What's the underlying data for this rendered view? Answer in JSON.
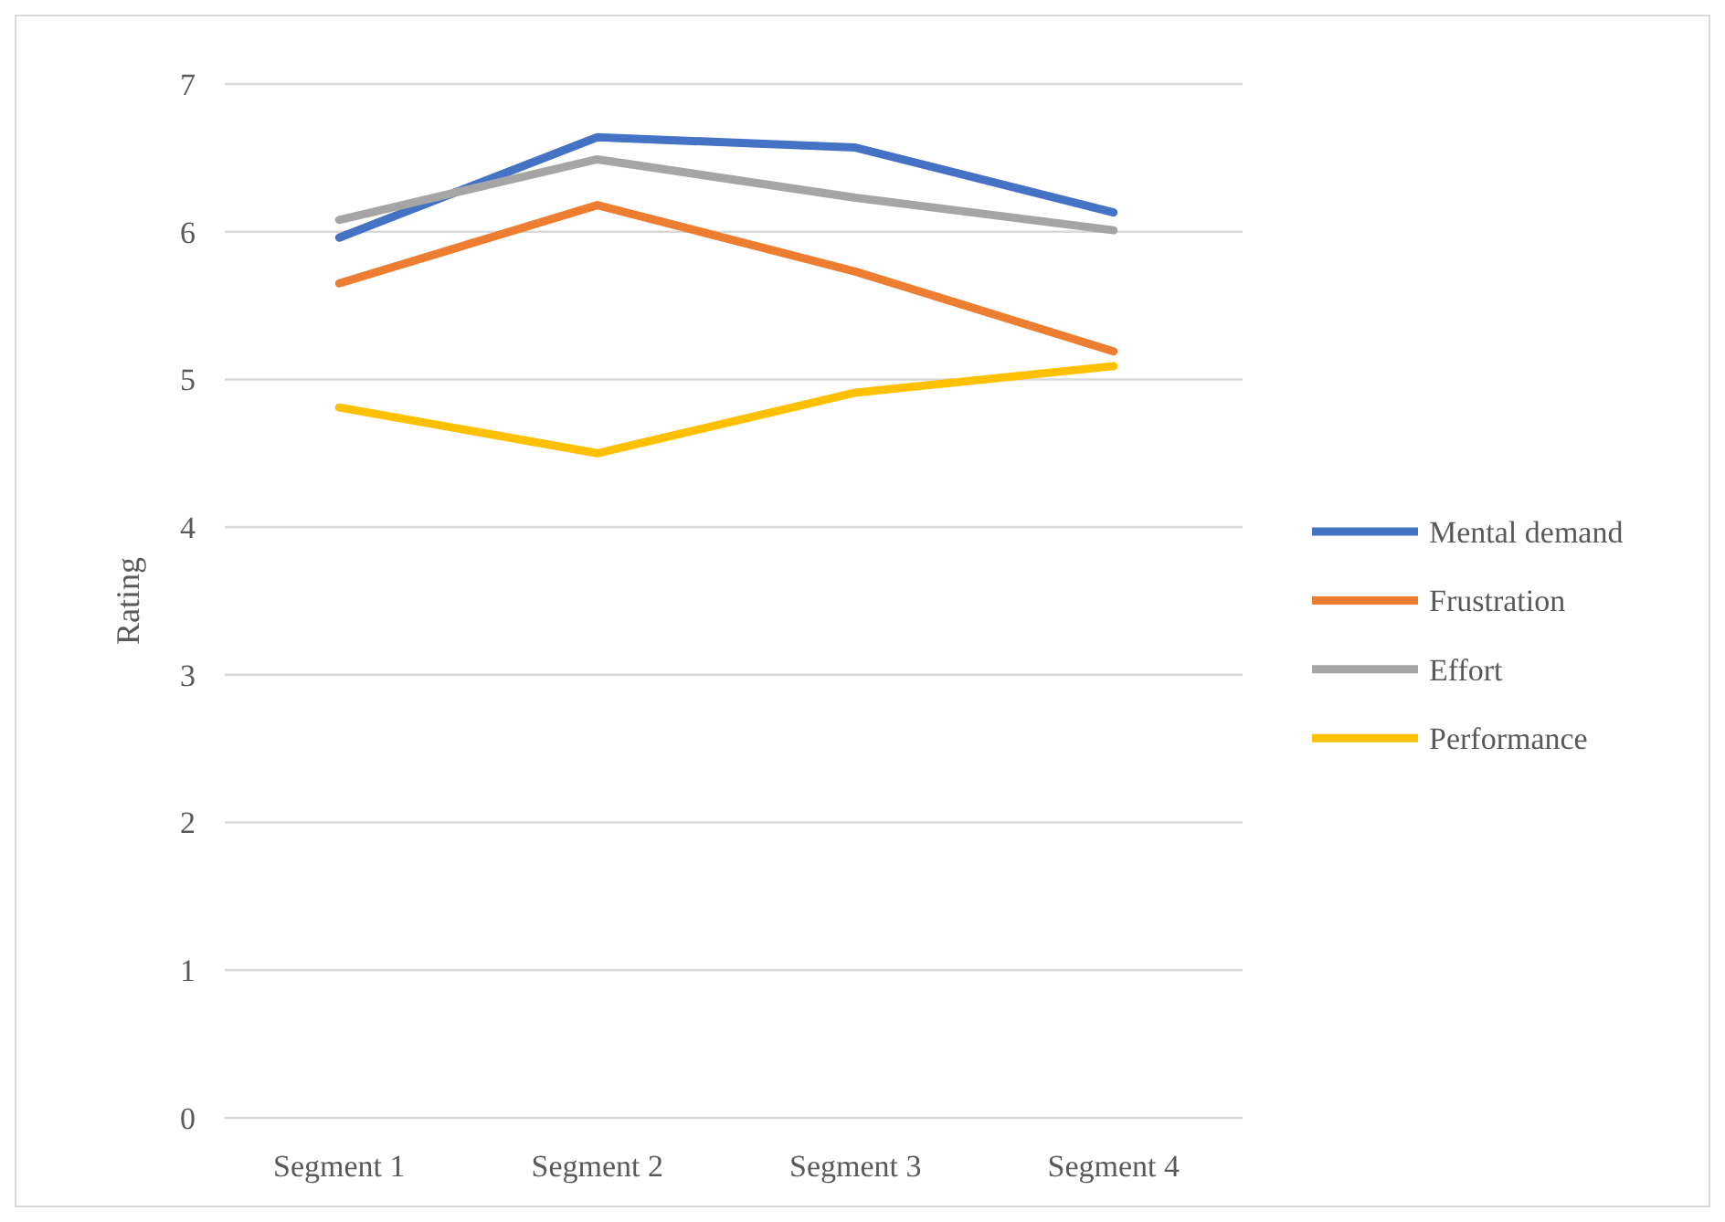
{
  "chart_data": {
    "type": "line",
    "ylabel": "Rating",
    "categories": [
      "Segment 1",
      "Segment 2",
      "Segment 3",
      "Segment 4"
    ],
    "series": [
      {
        "name": "Mental demand",
        "color": "#4472c4",
        "values": [
          5.96,
          6.64,
          6.57,
          6.13
        ]
      },
      {
        "name": "Frustration",
        "color": "#ed7d31",
        "values": [
          5.65,
          6.18,
          5.73,
          5.19
        ]
      },
      {
        "name": "Effort",
        "color": "#a5a5a5",
        "values": [
          6.08,
          6.49,
          6.23,
          6.01
        ]
      },
      {
        "name": "Performance",
        "color": "#ffc000",
        "values": [
          4.81,
          4.5,
          4.91,
          5.09
        ]
      }
    ],
    "ylim": [
      0,
      7
    ],
    "yticks": [
      0,
      1,
      2,
      3,
      4,
      5,
      6,
      7
    ],
    "grid": "y",
    "legend": "right",
    "marker": "none",
    "line_style": "solid"
  }
}
